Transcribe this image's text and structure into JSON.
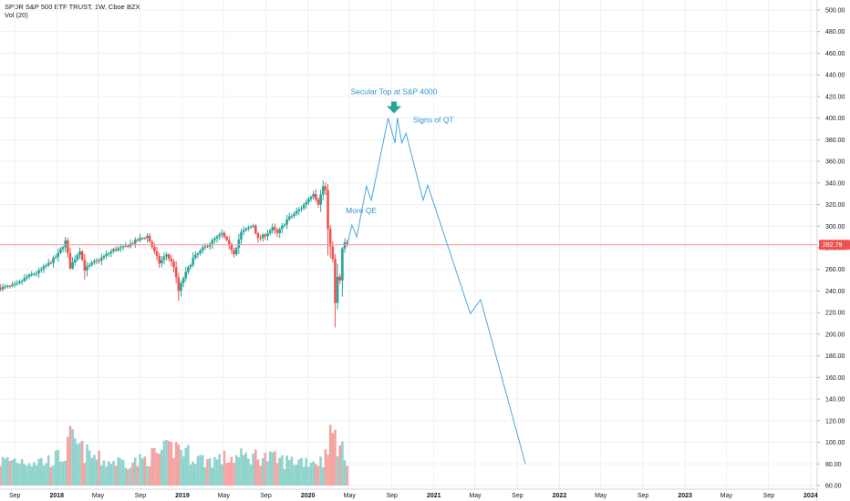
{
  "header": {
    "symbol_line": "SPDR S&P 500 ETF TRUST, 1W, Cboe BZX",
    "indicator_line": "Vol (20)"
  },
  "colors": {
    "up": "#26a69a",
    "down": "#ef5350",
    "vol_up": "#8fd3cc",
    "vol_down": "#f4a3a1",
    "projection": "#4aa8dc",
    "annotation": "#2e95d3",
    "arrow": "#26a69a",
    "price_line": "#f19594",
    "price_tag": "#ef5350",
    "grid": "#eef0f3"
  },
  "price_tag": {
    "value": 282.79,
    "label": "282.79"
  },
  "annotations": [
    {
      "text": "Secular Top at S&P 4000",
      "anchor_date": "2020-09-07",
      "price": 422
    },
    {
      "text": "Signs of QT",
      "anchor_date": "2020-11-01",
      "price": 396
    },
    {
      "text": "More QE",
      "anchor_date": "2020-04-20",
      "price": 312
    }
  ],
  "chart_data": {
    "type": "candlestick",
    "title": "SPDR S&P 500 ETF TRUST, 1W, Cboe BZX",
    "x_type": "date",
    "xlim": [
      "2017-07-20",
      "2024-01-20"
    ],
    "x_ticks": [
      {
        "date": "2017-09-01",
        "label": "Sep"
      },
      {
        "date": "2018-01-01",
        "label": "2018"
      },
      {
        "date": "2018-05-01",
        "label": "May"
      },
      {
        "date": "2018-09-01",
        "label": "Sep"
      },
      {
        "date": "2019-01-01",
        "label": "2019"
      },
      {
        "date": "2019-05-01",
        "label": "May"
      },
      {
        "date": "2019-09-01",
        "label": "Sep"
      },
      {
        "date": "2020-01-01",
        "label": "2020"
      },
      {
        "date": "2020-05-01",
        "label": "May"
      },
      {
        "date": "2020-09-01",
        "label": "Sep"
      },
      {
        "date": "2021-01-01",
        "label": "2021"
      },
      {
        "date": "2021-05-01",
        "label": "May"
      },
      {
        "date": "2021-09-01",
        "label": "Sep"
      },
      {
        "date": "2022-01-01",
        "label": "2022"
      },
      {
        "date": "2022-05-01",
        "label": "May"
      },
      {
        "date": "2022-09-01",
        "label": "Sep"
      },
      {
        "date": "2023-01-01",
        "label": "2023"
      },
      {
        "date": "2023-05-01",
        "label": "May"
      },
      {
        "date": "2023-09-01",
        "label": "Sep"
      },
      {
        "date": "2024-01-01",
        "label": "2024"
      }
    ],
    "y_ticks": [
      60,
      80,
      100,
      120,
      140,
      160,
      180,
      200,
      220,
      240,
      260,
      280,
      300,
      320,
      340,
      360,
      380,
      400,
      420,
      440,
      460,
      480,
      500
    ],
    "y_tick_labels": [
      "60.00",
      "80.00",
      "100.00",
      "120.00",
      "140.00",
      "160.00",
      "180.00",
      "200.00",
      "220.00",
      "240.00",
      "260.00",
      "280.00",
      "300.00",
      "320.00",
      "340.00",
      "360.00",
      "380.00",
      "400.00",
      "420.00",
      "440.00",
      "460.00",
      "480.00",
      "500.00"
    ],
    "ylim": [
      56,
      508
    ],
    "price_series_anchors": [
      [
        "2017-07-21",
        243
      ],
      [
        "2017-08-18",
        244
      ],
      [
        "2017-09-08",
        246
      ],
      [
        "2017-10-06",
        253
      ],
      [
        "2017-11-10",
        258
      ],
      [
        "2017-12-15",
        267
      ],
      [
        "2018-01-05",
        274
      ],
      [
        "2018-01-26",
        286
      ],
      [
        "2018-02-09",
        262
      ],
      [
        "2018-03-09",
        278
      ],
      [
        "2018-03-23",
        260
      ],
      [
        "2018-04-13",
        265
      ],
      [
        "2018-05-18",
        272
      ],
      [
        "2018-06-15",
        278
      ],
      [
        "2018-07-13",
        280
      ],
      [
        "2018-08-24",
        287
      ],
      [
        "2018-09-21",
        291
      ],
      [
        "2018-10-12",
        276
      ],
      [
        "2018-10-26",
        266
      ],
      [
        "2018-11-16",
        274
      ],
      [
        "2018-12-07",
        263
      ],
      [
        "2018-12-21",
        240
      ],
      [
        "2019-01-04",
        252
      ],
      [
        "2019-02-01",
        270
      ],
      [
        "2019-03-01",
        279
      ],
      [
        "2019-04-05",
        288
      ],
      [
        "2019-04-26",
        293
      ],
      [
        "2019-05-31",
        275
      ],
      [
        "2019-06-21",
        294
      ],
      [
        "2019-07-26",
        301
      ],
      [
        "2019-08-09",
        288
      ],
      [
        "2019-08-30",
        292
      ],
      [
        "2019-09-20",
        298
      ],
      [
        "2019-10-04",
        293
      ],
      [
        "2019-11-01",
        306
      ],
      [
        "2019-12-13",
        317
      ],
      [
        "2020-01-17",
        331
      ],
      [
        "2020-01-31",
        321
      ],
      [
        "2020-02-14",
        337
      ],
      [
        "2020-02-21",
        333
      ],
      [
        "2020-02-28",
        296
      ],
      [
        "2020-03-13",
        269
      ],
      [
        "2020-03-20",
        228
      ],
      [
        "2020-03-27",
        253
      ],
      [
        "2020-04-03",
        249
      ],
      [
        "2020-04-09",
        278
      ],
      [
        "2020-04-17",
        284
      ],
      [
        "2020-04-24",
        283
      ]
    ],
    "projection_points": [
      [
        "2020-04-24",
        283
      ],
      [
        "2020-05-08",
        301
      ],
      [
        "2020-05-22",
        290
      ],
      [
        "2020-06-19",
        337
      ],
      [
        "2020-07-03",
        324
      ],
      [
        "2020-08-21",
        400
      ],
      [
        "2020-09-10",
        377
      ],
      [
        "2020-09-17",
        400
      ],
      [
        "2020-09-30",
        377
      ],
      [
        "2020-10-12",
        386
      ],
      [
        "2020-12-01",
        324
      ],
      [
        "2020-12-14",
        338
      ],
      [
        "2021-04-17",
        219
      ],
      [
        "2021-05-17",
        232
      ],
      [
        "2021-09-24",
        80
      ]
    ],
    "volume_series_anchors": [
      [
        "2017-07-21",
        80
      ],
      [
        "2017-09-01",
        85
      ],
      [
        "2017-12-01",
        80
      ],
      [
        "2018-01-26",
        100
      ],
      [
        "2018-02-09",
        155
      ],
      [
        "2018-03-23",
        108
      ],
      [
        "2018-05-18",
        80
      ],
      [
        "2018-08-24",
        78
      ],
      [
        "2018-10-12",
        100
      ],
      [
        "2018-12-21",
        130
      ],
      [
        "2019-01-18",
        105
      ],
      [
        "2019-03-08",
        82
      ],
      [
        "2019-05-31",
        92
      ],
      [
        "2019-08-09",
        98
      ],
      [
        "2019-10-25",
        80
      ],
      [
        "2019-12-20",
        84
      ],
      [
        "2020-02-14",
        80
      ],
      [
        "2020-02-28",
        148
      ],
      [
        "2020-03-13",
        170
      ],
      [
        "2020-03-20",
        165
      ],
      [
        "2020-04-03",
        118
      ],
      [
        "2020-04-24",
        96
      ]
    ]
  }
}
